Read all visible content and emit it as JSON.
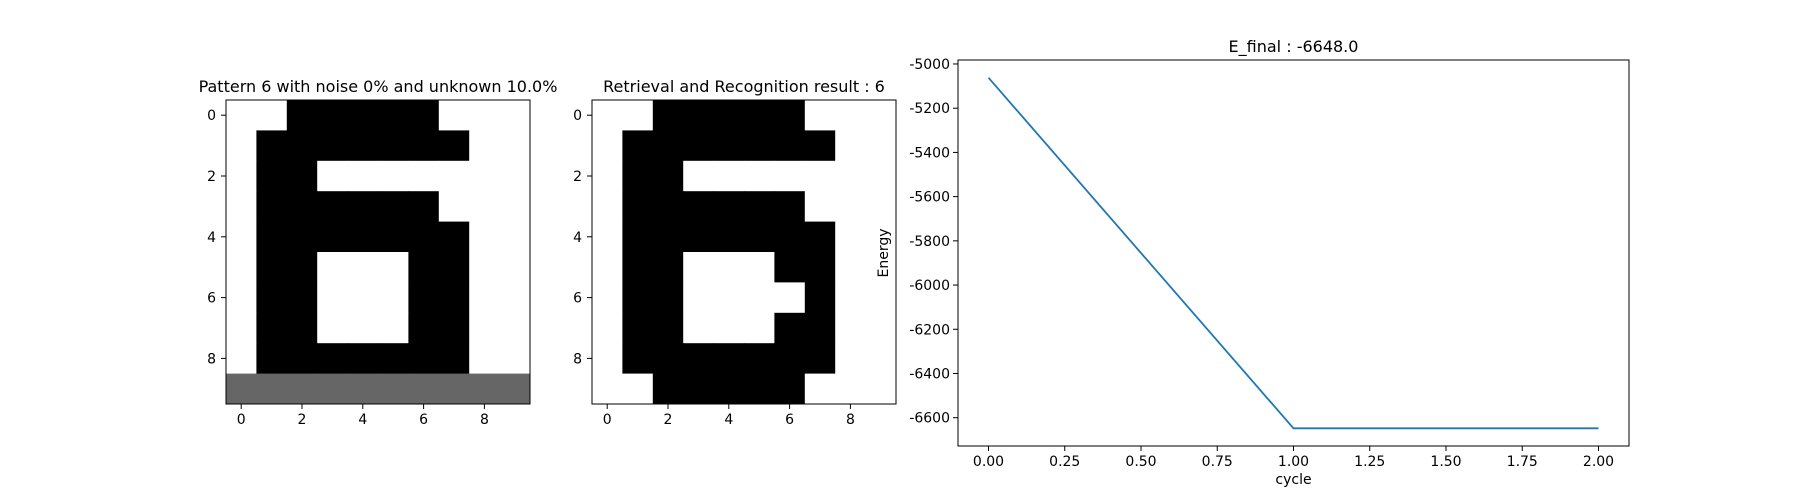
{
  "chart_data": [
    {
      "type": "heatmap",
      "title": "Pattern 6 with noise 0% and unknown 10.0%",
      "x_ticks": [
        "0",
        "2",
        "4",
        "6",
        "8"
      ],
      "y_ticks": [
        "0",
        "2",
        "4",
        "6",
        "8"
      ],
      "values": [
        [
          1,
          1,
          0,
          0,
          0,
          0,
          0,
          1,
          1,
          1
        ],
        [
          1,
          0,
          0,
          0,
          0,
          0,
          0,
          0,
          1,
          1
        ],
        [
          1,
          0,
          0,
          1,
          1,
          1,
          1,
          1,
          1,
          1
        ],
        [
          1,
          0,
          0,
          0,
          0,
          0,
          0,
          1,
          1,
          1
        ],
        [
          1,
          0,
          0,
          0,
          0,
          0,
          0,
          0,
          1,
          1
        ],
        [
          1,
          0,
          0,
          1,
          1,
          1,
          0,
          0,
          1,
          1
        ],
        [
          1,
          0,
          0,
          1,
          1,
          1,
          0,
          0,
          1,
          1
        ],
        [
          1,
          0,
          0,
          1,
          1,
          1,
          0,
          0,
          1,
          1
        ],
        [
          1,
          0,
          0,
          0,
          0,
          0,
          0,
          0,
          1,
          1
        ],
        [
          0.4,
          0.4,
          0.4,
          0.4,
          0.4,
          0.4,
          0.4,
          0.4,
          0.4,
          0.4
        ]
      ]
    },
    {
      "type": "heatmap",
      "title": "Retrieval and Recognition result : 6",
      "x_ticks": [
        "0",
        "2",
        "4",
        "6",
        "8"
      ],
      "y_ticks": [
        "0",
        "2",
        "4",
        "6",
        "8"
      ],
      "values": [
        [
          1,
          1,
          0,
          0,
          0,
          0,
          0,
          1,
          1,
          1
        ],
        [
          1,
          0,
          0,
          0,
          0,
          0,
          0,
          0,
          1,
          1
        ],
        [
          1,
          0,
          0,
          1,
          1,
          1,
          1,
          1,
          1,
          1
        ],
        [
          1,
          0,
          0,
          0,
          0,
          0,
          0,
          1,
          1,
          1
        ],
        [
          1,
          0,
          0,
          0,
          0,
          0,
          0,
          0,
          1,
          1
        ],
        [
          1,
          0,
          0,
          1,
          1,
          1,
          0,
          0,
          1,
          1
        ],
        [
          1,
          0,
          0,
          1,
          1,
          1,
          1,
          0,
          1,
          1
        ],
        [
          1,
          0,
          0,
          1,
          1,
          1,
          0,
          0,
          1,
          1
        ],
        [
          1,
          0,
          0,
          0,
          0,
          0,
          0,
          0,
          1,
          1
        ],
        [
          1,
          1,
          0,
          0,
          0,
          0,
          0,
          1,
          1,
          1
        ]
      ]
    },
    {
      "type": "line",
      "title": "E_final : -6648.0",
      "xlabel": "cycle",
      "ylabel": "Energy",
      "xlim": [
        -0.1,
        2.1
      ],
      "ylim": [
        -6728,
        -4982
      ],
      "x_ticks": [
        "0.00",
        "0.25",
        "0.50",
        "0.75",
        "1.00",
        "1.25",
        "1.50",
        "1.75",
        "2.00"
      ],
      "y_ticks": [
        "-5000",
        "-5200",
        "-5400",
        "-5600",
        "-5800",
        "-6000",
        "-6200",
        "-6400",
        "-6600"
      ],
      "series": [
        {
          "x": [
            0,
            1,
            2
          ],
          "y": [
            -5062,
            -6648,
            -6648
          ],
          "color": "#1f77b4"
        }
      ]
    }
  ]
}
